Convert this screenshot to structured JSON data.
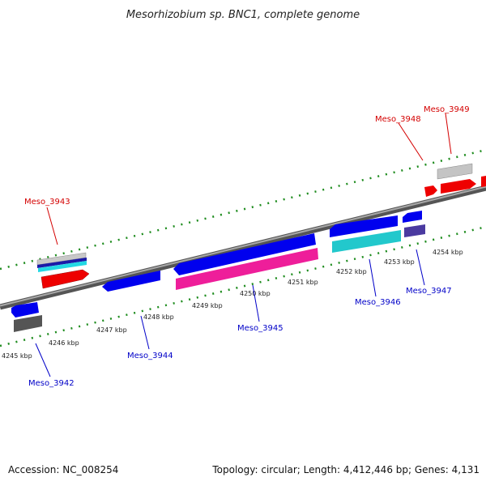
{
  "title": "Mesorhizobium sp. BNC1, complete genome",
  "footer": {
    "accession": "Accession: NC_008254",
    "summary": "Topology: circular; Length: 4,412,446 bp; Genes: 4,131"
  },
  "colors": {
    "backbone": "#7a7a7a",
    "ticks": "#1e8c1e",
    "label_red": "#d40000",
    "label_blue": "#0000c8"
  },
  "position_labels": [
    "4245 kbp",
    "4246 kbp",
    "4247 kbp",
    "4248 kbp",
    "4249 kbp",
    "4250 kbp",
    "4251 kbp",
    "4252 kbp",
    "4253 kbp",
    "4254 kbp"
  ],
  "gene_labels": [
    {
      "id": "Meso_3942",
      "strand": "reverse"
    },
    {
      "id": "Meso_3943",
      "strand": "forward"
    },
    {
      "id": "Meso_3944",
      "strand": "reverse"
    },
    {
      "id": "Meso_3945",
      "strand": "reverse"
    },
    {
      "id": "Meso_3946",
      "strand": "reverse"
    },
    {
      "id": "Meso_3947",
      "strand": "reverse"
    },
    {
      "id": "Meso_3948",
      "strand": "forward"
    },
    {
      "id": "Meso_3949",
      "strand": "forward"
    }
  ]
}
